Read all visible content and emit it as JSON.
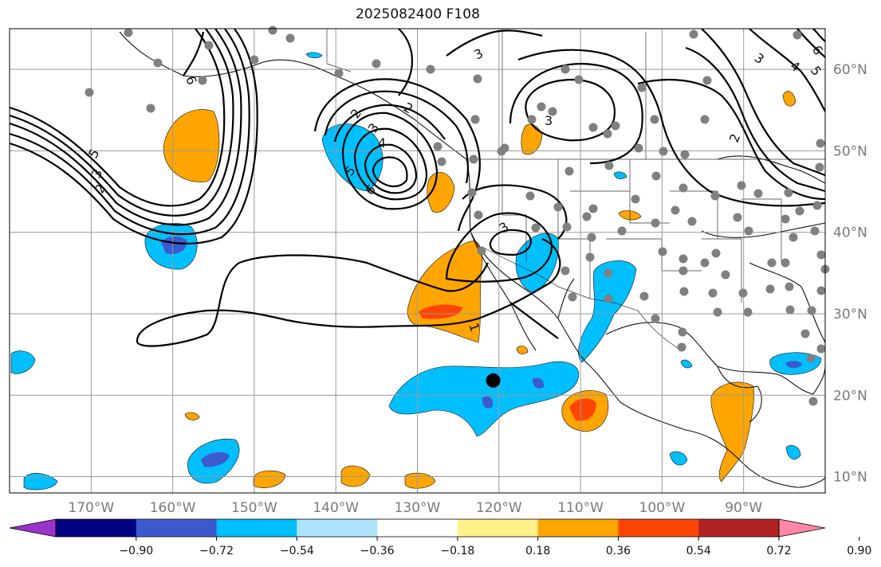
{
  "title": "2025082400 F108",
  "map": {
    "lon_range": [
      -180,
      -80
    ],
    "lat_range": [
      8,
      65
    ],
    "lon_ticks": [
      {
        "value": -170,
        "label": "170°W"
      },
      {
        "value": -160,
        "label": "160°W"
      },
      {
        "value": -150,
        "label": "150°W"
      },
      {
        "value": -140,
        "label": "140°W"
      },
      {
        "value": -130,
        "label": "130°W"
      },
      {
        "value": -120,
        "label": "120°W"
      },
      {
        "value": -110,
        "label": "110°W"
      },
      {
        "value": -100,
        "label": "100°W"
      },
      {
        "value": -90,
        "label": "90°W"
      }
    ],
    "lat_ticks": [
      {
        "value": 60,
        "label": "60°N"
      },
      {
        "value": 50,
        "label": "50°N"
      },
      {
        "value": 40,
        "label": "40°N"
      },
      {
        "value": 30,
        "label": "30°N"
      },
      {
        "value": 20,
        "label": "20°N"
      },
      {
        "value": 10,
        "label": "10°N"
      }
    ],
    "grid": true,
    "storm_marker": {
      "lon": -121,
      "lat": 22
    }
  },
  "colorbar": {
    "colors": [
      "#9933cc",
      "#000080",
      "#3a5acd",
      "#00bfff",
      "#aee2ff",
      "#ffffff",
      "#fff08a",
      "#ffa500",
      "#ff4500",
      "#b22222",
      "#ff88aa"
    ],
    "tick_labels": [
      "−0.90",
      "−0.72",
      "−0.54",
      "−0.36",
      "−0.18",
      "0.18",
      "0.36",
      "0.54",
      "0.72",
      "0.90"
    ]
  },
  "contour_labels": [
    "1",
    "2",
    "3",
    "4",
    "5",
    "6"
  ]
}
